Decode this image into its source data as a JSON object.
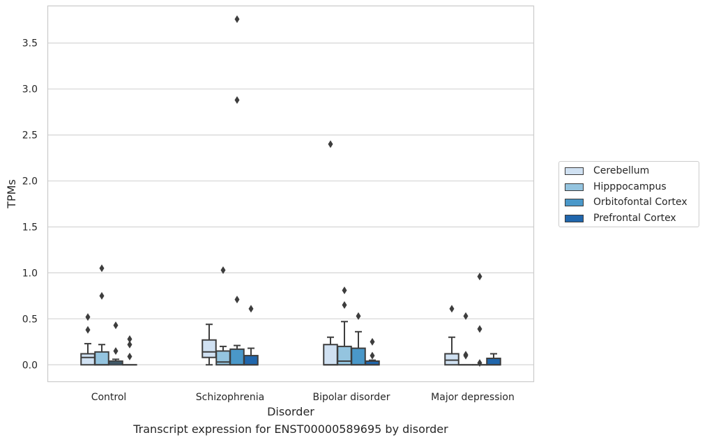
{
  "chart_data": {
    "type": "box",
    "ylabel": "TPMs",
    "xlabel": "Disorder",
    "ylim": [
      -0.18,
      3.9
    ],
    "yticks": [
      "0.0",
      "0.5",
      "1.0",
      "1.5",
      "2.0",
      "2.5",
      "3.0",
      "3.5"
    ],
    "ytick_values": [
      0,
      0.5,
      1.0,
      1.5,
      2.0,
      2.5,
      3.0,
      3.5
    ],
    "grid": "horizontal",
    "legend_position": "right",
    "categories": [
      "Control",
      "Schizophrenia",
      "Bipolar disorder",
      "Major depression"
    ],
    "series": [
      {
        "name": "Cerebellum",
        "color": "#d0e1f2",
        "boxes": [
          {
            "whislo": 0,
            "q1": 0,
            "med": 0.08,
            "q3": 0.12,
            "whishi": 0.23,
            "fliers": [
              0.38,
              0.52
            ]
          },
          {
            "whislo": 0,
            "q1": 0.08,
            "med": 0.14,
            "q3": 0.27,
            "whishi": 0.44,
            "fliers": []
          },
          {
            "whislo": 0,
            "q1": 0,
            "med": 0,
            "q3": 0.22,
            "whishi": 0.3,
            "fliers": [
              2.4
            ]
          },
          {
            "whislo": 0,
            "q1": 0,
            "med": 0.05,
            "q3": 0.12,
            "whishi": 0.3,
            "fliers": [
              0.61
            ]
          }
        ]
      },
      {
        "name": "Hipppocampus",
        "color": "#94c4df",
        "boxes": [
          {
            "whislo": 0,
            "q1": 0,
            "med": 0,
            "q3": 0.14,
            "whishi": 0.22,
            "fliers": [
              0.75,
              1.05
            ]
          },
          {
            "whislo": 0,
            "q1": 0,
            "med": 0.03,
            "q3": 0.15,
            "whishi": 0.2,
            "fliers": [
              1.03
            ]
          },
          {
            "whislo": 0,
            "q1": 0,
            "med": 0.04,
            "q3": 0.2,
            "whishi": 0.47,
            "fliers": [
              0.65,
              0.81
            ]
          },
          {
            "whislo": 0,
            "q1": 0,
            "med": 0,
            "q3": 0,
            "whishi": 0,
            "fliers": [
              0.1,
              0.11,
              0.53
            ]
          }
        ]
      },
      {
        "name": "Orbitofontal Cortex",
        "color": "#4a98c9",
        "boxes": [
          {
            "whislo": 0,
            "q1": 0,
            "med": 0.02,
            "q3": 0.04,
            "whishi": 0.06,
            "fliers": [
              0.15,
              0.43
            ]
          },
          {
            "whislo": 0,
            "q1": 0,
            "med": 0,
            "q3": 0.17,
            "whishi": 0.21,
            "fliers": [
              0.71,
              3.76,
              2.88
            ]
          },
          {
            "whislo": 0,
            "q1": 0,
            "med": 0,
            "q3": 0.18,
            "whishi": 0.36,
            "fliers": [
              0.53
            ]
          },
          {
            "whislo": 0,
            "q1": 0,
            "med": 0,
            "q3": 0,
            "whishi": 0,
            "fliers": [
              0.02,
              0.39,
              0.96
            ]
          }
        ]
      },
      {
        "name": "Prefrontal Cortex",
        "color": "#2066ac",
        "boxes": [
          {
            "whislo": 0,
            "q1": 0,
            "med": 0,
            "q3": 0,
            "whishi": 0,
            "fliers": [
              0.09,
              0.22,
              0.28
            ]
          },
          {
            "whislo": 0,
            "q1": 0,
            "med": 0,
            "q3": 0.1,
            "whishi": 0.18,
            "fliers": [
              0.61
            ]
          },
          {
            "whislo": 0,
            "q1": 0,
            "med": 0,
            "q3": 0.04,
            "whishi": 0.05,
            "fliers": [
              0.1,
              0.25
            ]
          },
          {
            "whislo": 0,
            "q1": 0,
            "med": 0,
            "q3": 0.07,
            "whishi": 0.12,
            "fliers": []
          }
        ]
      }
    ]
  },
  "caption": "Transcript expression for ENST00000589695 by disorder"
}
